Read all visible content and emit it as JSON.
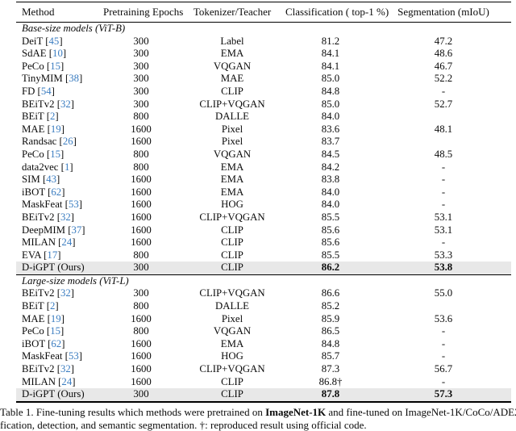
{
  "table": {
    "columns": {
      "method": "Method",
      "epochs": "Pretraining Epochs",
      "tokenizer": "Tokenizer/Teacher",
      "classification": "Classification ( top-1 %)",
      "segmentation": "Segmentation (mIoU)"
    },
    "highlight_color": "#e8e8e8",
    "citation_color": "#3a7cc0",
    "sections": [
      {
        "title": "Base-size models (ViT-B)",
        "rows": [
          {
            "method": "DeiT",
            "cite": "45",
            "epochs": "300",
            "tokenizer": "Label",
            "cls": "81.2",
            "seg": "47.2"
          },
          {
            "method": "SdAE",
            "cite": "10",
            "epochs": "300",
            "tokenizer": "EMA",
            "cls": "84.1",
            "seg": "48.6"
          },
          {
            "method": "PeCo",
            "cite": "15",
            "epochs": "300",
            "tokenizer": "VQGAN",
            "cls": "84.1",
            "seg": "46.7"
          },
          {
            "method": "TinyMIM",
            "cite": "38",
            "epochs": "300",
            "tokenizer": "MAE",
            "cls": "85.0",
            "seg": "52.2"
          },
          {
            "method": "FD",
            "cite": "54",
            "epochs": "300",
            "tokenizer": "CLIP",
            "cls": "84.8",
            "seg": "-"
          },
          {
            "method": "BEiTv2",
            "cite": "32",
            "epochs": "300",
            "tokenizer": "CLIP+VQGAN",
            "cls": "85.0",
            "seg": "52.7"
          },
          {
            "method": "BEiT",
            "cite": "2",
            "epochs": "800",
            "tokenizer": "DALLE",
            "cls": "84.0",
            "seg": ""
          },
          {
            "method": "MAE",
            "cite": "19",
            "epochs": "1600",
            "tokenizer": "Pixel",
            "cls": "83.6",
            "seg": "48.1"
          },
          {
            "method": "Randsac",
            "cite": "26",
            "epochs": "1600",
            "tokenizer": "Pixel",
            "cls": "83.7",
            "seg": ""
          },
          {
            "method": "PeCo",
            "cite": "15",
            "epochs": "800",
            "tokenizer": "VQGAN",
            "cls": "84.5",
            "seg": "48.5"
          },
          {
            "method": "data2vec",
            "cite": "1",
            "epochs": "800",
            "tokenizer": "EMA",
            "cls": "84.2",
            "seg": "-"
          },
          {
            "method": "SIM",
            "cite": "43",
            "epochs": "1600",
            "tokenizer": "EMA",
            "cls": "83.8",
            "seg": "-"
          },
          {
            "method": "iBOT",
            "cite": "62",
            "epochs": "1600",
            "tokenizer": "EMA",
            "cls": "84.0",
            "seg": "-"
          },
          {
            "method": "MaskFeat",
            "cite": "53",
            "epochs": "1600",
            "tokenizer": "HOG",
            "cls": "84.0",
            "seg": "-"
          },
          {
            "method": "BEiTv2",
            "cite": "32",
            "epochs": "1600",
            "tokenizer": "CLIP+VQGAN",
            "cls": "85.5",
            "seg": "53.1"
          },
          {
            "method": "DeepMIM",
            "cite": "37",
            "epochs": "1600",
            "tokenizer": "CLIP",
            "cls": "85.6",
            "seg": "53.1"
          },
          {
            "method": "MILAN",
            "cite": "24",
            "epochs": "1600",
            "tokenizer": "CLIP",
            "cls": "85.6",
            "seg": "-"
          },
          {
            "method": "EVA",
            "cite": "17",
            "epochs": "800",
            "tokenizer": "CLIP",
            "cls": "85.5",
            "seg": "53.3"
          },
          {
            "method": "D-iGPT (Ours)",
            "cite": null,
            "epochs": "300",
            "tokenizer": "CLIP",
            "cls": "86.2",
            "seg": "53.8",
            "highlight": true,
            "bold": true
          }
        ]
      },
      {
        "title": "Large-size models (ViT-L)",
        "rows": [
          {
            "method": "BEiTv2",
            "cite": "32",
            "epochs": "300",
            "tokenizer": "CLIP+VQGAN",
            "cls": "86.6",
            "seg": "55.0"
          },
          {
            "method": "BEiT",
            "cite": "2",
            "epochs": "800",
            "tokenizer": "DALLE",
            "cls": "85.2",
            "seg": ""
          },
          {
            "method": "MAE",
            "cite": "19",
            "epochs": "1600",
            "tokenizer": "Pixel",
            "cls": "85.9",
            "seg": "53.6"
          },
          {
            "method": "PeCo",
            "cite": "15",
            "epochs": "800",
            "tokenizer": "VQGAN",
            "cls": "86.5",
            "seg": "-"
          },
          {
            "method": "iBOT",
            "cite": "62",
            "epochs": "1600",
            "tokenizer": "EMA",
            "cls": "84.8",
            "seg": "-"
          },
          {
            "method": "MaskFeat",
            "cite": "53",
            "epochs": "1600",
            "tokenizer": "HOG",
            "cls": "85.7",
            "seg": "-"
          },
          {
            "method": "BEiTv2",
            "cite": "32",
            "epochs": "1600",
            "tokenizer": "CLIP+VQGAN",
            "cls": "87.3",
            "seg": "56.7"
          },
          {
            "method": "MILAN",
            "cite": "24",
            "epochs": "1600",
            "tokenizer": "CLIP",
            "cls": "86.8†",
            "seg": "-"
          },
          {
            "method": "D-iGPT (Ours)",
            "cite": null,
            "epochs": "300",
            "tokenizer": "CLIP",
            "cls": "87.8",
            "seg": "57.3",
            "highlight": true,
            "bold": true
          }
        ]
      }
    ]
  },
  "caption": {
    "line1_pre": "Table 1. Fine-tuning results which methods were pretrained on ",
    "line1_bold": "ImageNet-1K",
    "line1_post": " and fine-tuned on ImageNet-1K/CoCo/ADE20K on classi-",
    "line2": "fication, detection, and semantic segmentation. †: reproduced result using official code."
  }
}
